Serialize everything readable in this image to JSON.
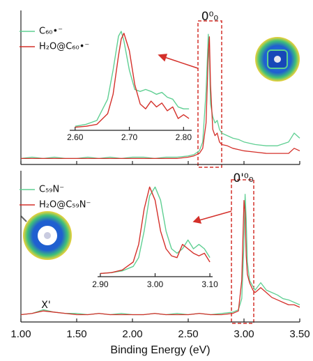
{
  "chart_data": [
    {
      "type": "line",
      "legend": "upper left",
      "peak_label": "0⁰₀",
      "xlim": [
        1.0,
        3.5
      ],
      "ylim": [
        0,
        1.05
      ],
      "xticks": [
        1.0,
        1.5,
        2.0,
        2.5,
        3.0,
        3.5
      ],
      "x": [
        1.0,
        1.1,
        1.2,
        1.3,
        1.4,
        1.5,
        1.6,
        1.7,
        1.8,
        1.9,
        2.0,
        2.1,
        2.2,
        2.3,
        2.4,
        2.5,
        2.55,
        2.6,
        2.63,
        2.66,
        2.68,
        2.69,
        2.7,
        2.72,
        2.74,
        2.76,
        2.78,
        2.8,
        2.85,
        2.9,
        2.95,
        3.0,
        3.1,
        3.2,
        3.3,
        3.4,
        3.45,
        3.5
      ],
      "series": [
        {
          "name": "C₆₀•⁻",
          "color": "#5fcf92",
          "values": [
            0.02,
            0.03,
            0.02,
            0.03,
            0.02,
            0.02,
            0.03,
            0.02,
            0.03,
            0.02,
            0.03,
            0.03,
            0.02,
            0.03,
            0.03,
            0.04,
            0.05,
            0.08,
            0.15,
            0.55,
            1.0,
            0.8,
            0.45,
            0.35,
            0.3,
            0.32,
            0.25,
            0.22,
            0.2,
            0.18,
            0.17,
            0.15,
            0.13,
            0.12,
            0.12,
            0.15,
            0.22,
            0.18
          ]
        },
        {
          "name": "H₂O@C₆₀•⁻",
          "color": "#d4302a",
          "values": [
            0.02,
            0.02,
            0.02,
            0.02,
            0.02,
            0.02,
            0.02,
            0.02,
            0.02,
            0.02,
            0.02,
            0.02,
            0.02,
            0.02,
            0.02,
            0.03,
            0.04,
            0.06,
            0.1,
            0.3,
            0.85,
            0.98,
            0.6,
            0.25,
            0.2,
            0.22,
            0.15,
            0.13,
            0.12,
            0.1,
            0.09,
            0.08,
            0.07,
            0.06,
            0.06,
            0.06,
            0.1,
            0.08
          ]
        }
      ]
    },
    {
      "type": "line",
      "xlim": [
        2.59,
        2.815
      ],
      "ylim": [
        0,
        1.05
      ],
      "xticks": [
        {
          "value": 2.6,
          "label": "2.60"
        },
        {
          "value": 2.7,
          "label": "2.70"
        },
        {
          "value": 2.8,
          "label": "2.80"
        }
      ],
      "x": [
        2.6,
        2.62,
        2.64,
        2.66,
        2.67,
        2.68,
        2.685,
        2.69,
        2.7,
        2.71,
        2.72,
        2.73,
        2.74,
        2.75,
        2.76,
        2.77,
        2.78,
        2.79,
        2.8,
        2.81
      ],
      "series": [
        {
          "color": "#5fcf92",
          "values": [
            0.02,
            0.04,
            0.08,
            0.3,
            0.6,
            0.95,
            1.0,
            0.9,
            0.6,
            0.4,
            0.38,
            0.4,
            0.38,
            0.35,
            0.37,
            0.32,
            0.3,
            0.22,
            0.2,
            0.2
          ]
        },
        {
          "color": "#d4302a",
          "values": [
            0.01,
            0.02,
            0.04,
            0.15,
            0.35,
            0.75,
            0.92,
            0.98,
            0.8,
            0.45,
            0.25,
            0.2,
            0.28,
            0.22,
            0.26,
            0.18,
            0.22,
            0.1,
            0.14,
            0.1
          ]
        }
      ]
    },
    {
      "type": "line",
      "legend": "upper left",
      "peak_label": "0'⁰₀",
      "annotation": "X'",
      "xlabel": "Binding Energy (eV)",
      "xlim": [
        1.0,
        3.5
      ],
      "ylim": [
        0,
        1.05
      ],
      "xticks": [
        {
          "value": 1.0,
          "label": "1.00"
        },
        {
          "value": 1.5,
          "label": "1.50"
        },
        {
          "value": 2.0,
          "label": "2.00"
        },
        {
          "value": 2.5,
          "label": "2.50"
        },
        {
          "value": 3.0,
          "label": "3.00"
        },
        {
          "value": 3.5,
          "label": "3.50"
        }
      ],
      "x": [
        1.0,
        1.1,
        1.2,
        1.3,
        1.4,
        1.5,
        1.6,
        1.7,
        1.8,
        1.9,
        2.0,
        2.1,
        2.2,
        2.3,
        2.4,
        2.5,
        2.6,
        2.7,
        2.8,
        2.9,
        2.95,
        2.98,
        3.0,
        3.01,
        3.02,
        3.03,
        3.05,
        3.08,
        3.1,
        3.15,
        3.2,
        3.25,
        3.3,
        3.35,
        3.4,
        3.45,
        3.5
      ],
      "series": [
        {
          "name": "C₅₉N⁻",
          "color": "#5fcf92",
          "values": [
            0.02,
            0.03,
            0.06,
            0.04,
            0.03,
            0.03,
            0.02,
            0.03,
            0.02,
            0.03,
            0.02,
            0.02,
            0.03,
            0.02,
            0.03,
            0.02,
            0.03,
            0.02,
            0.03,
            0.04,
            0.06,
            0.15,
            0.6,
            1.0,
            0.8,
            0.45,
            0.3,
            0.25,
            0.22,
            0.28,
            0.22,
            0.2,
            0.18,
            0.15,
            0.14,
            0.12,
            0.1
          ]
        },
        {
          "name": "H₂O@C₅₉N⁻",
          "color": "#d4302a",
          "values": [
            0.02,
            0.03,
            0.05,
            0.04,
            0.03,
            0.02,
            0.02,
            0.03,
            0.02,
            0.02,
            0.02,
            0.02,
            0.03,
            0.02,
            0.02,
            0.02,
            0.03,
            0.02,
            0.02,
            0.03,
            0.05,
            0.3,
            0.95,
            0.85,
            0.5,
            0.35,
            0.28,
            0.22,
            0.2,
            0.24,
            0.2,
            0.16,
            0.14,
            0.12,
            0.1,
            0.1,
            0.08
          ]
        }
      ]
    },
    {
      "type": "line",
      "xlim": [
        2.895,
        3.105
      ],
      "ylim": [
        0,
        1.05
      ],
      "xticks": [
        {
          "value": 2.9,
          "label": "2.90"
        },
        {
          "value": 3.0,
          "label": "3.00"
        },
        {
          "value": 3.1,
          "label": "3.10"
        }
      ],
      "x": [
        2.9,
        2.92,
        2.94,
        2.96,
        2.97,
        2.98,
        2.99,
        3.0,
        3.01,
        3.02,
        3.03,
        3.04,
        3.05,
        3.06,
        3.07,
        3.08,
        3.09,
        3.1
      ],
      "series": [
        {
          "color": "#5fcf92",
          "values": [
            0.02,
            0.03,
            0.05,
            0.1,
            0.2,
            0.5,
            0.9,
            1.0,
            0.85,
            0.5,
            0.3,
            0.25,
            0.3,
            0.4,
            0.3,
            0.35,
            0.3,
            0.2
          ]
        },
        {
          "color": "#d4302a",
          "values": [
            0.02,
            0.03,
            0.06,
            0.15,
            0.35,
            0.75,
            1.0,
            0.85,
            0.5,
            0.3,
            0.22,
            0.2,
            0.35,
            0.3,
            0.25,
            0.22,
            0.25,
            0.15
          ]
        }
      ]
    }
  ]
}
